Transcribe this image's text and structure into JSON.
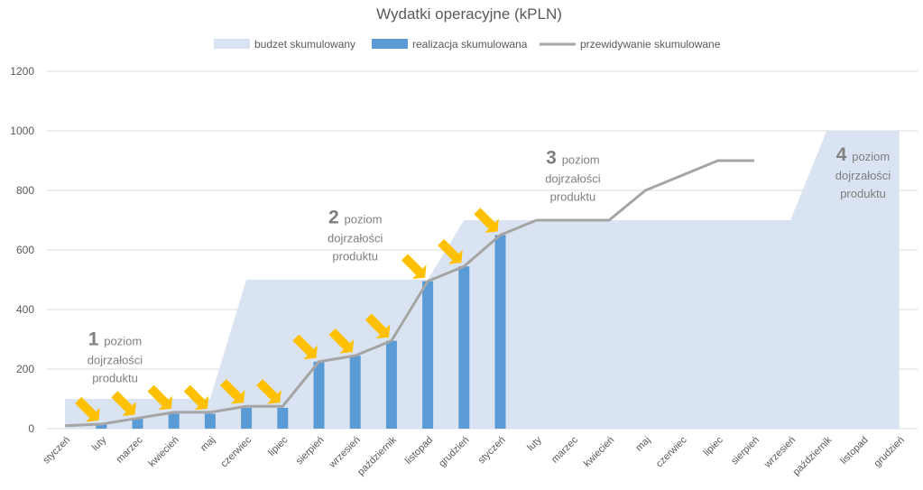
{
  "chart_data": {
    "type": "bar",
    "title": "Wydatki operacyjne (kPLN)",
    "xlabel": "",
    "ylabel": "",
    "ylim": [
      0,
      1200
    ],
    "yticks": [
      0,
      200,
      400,
      600,
      800,
      1000,
      1200
    ],
    "grid": true,
    "legend_position": "top",
    "categories": [
      "styczeń",
      "luty",
      "marzec",
      "kwiecień",
      "maj",
      "czerwiec",
      "lipiec",
      "sierpień",
      "wrzesień",
      "październik",
      "listopad",
      "grudzień",
      "styczeń",
      "luty",
      "marzec",
      "kwiecień",
      "maj",
      "czerwiec",
      "lipiec",
      "sierpień",
      "wrzesień",
      "październik",
      "listopad",
      "grudzień"
    ],
    "series": [
      {
        "name": "budzet skumulowany",
        "type": "area",
        "color": "#dae3f1",
        "values": [
          100,
          100,
          100,
          100,
          100,
          500,
          500,
          500,
          500,
          500,
          500,
          700,
          700,
          700,
          700,
          700,
          700,
          700,
          700,
          700,
          700,
          1000,
          1000,
          1000
        ]
      },
      {
        "name": "realizacja skumulowana",
        "type": "bar",
        "color": "#5b9bd5",
        "values": [
          0,
          15,
          35,
          50,
          50,
          70,
          70,
          225,
          245,
          295,
          495,
          545,
          650,
          null,
          null,
          null,
          null,
          null,
          null,
          null,
          null,
          null,
          null,
          null
        ]
      },
      {
        "name": "przewidywanie skumulowane",
        "type": "line",
        "color": "#a5a5a5",
        "values": [
          10,
          15,
          35,
          55,
          55,
          75,
          75,
          225,
          245,
          295,
          495,
          545,
          650,
          700,
          700,
          700,
          800,
          850,
          900,
          900,
          null,
          null,
          null,
          null
        ]
      }
    ],
    "annotations": [
      {
        "num": "1",
        "text1": "poziom",
        "text2": "dojrzałości",
        "text3": "produktu",
        "at_index": 2,
        "at_value": 280
      },
      {
        "num": "2",
        "text1": "poziom",
        "text2": "dojrzałości",
        "text3": "produktu",
        "at_index": 8,
        "at_value": 690
      },
      {
        "num": "3",
        "text1": "poziom",
        "text2": "dojrzałości",
        "text3": "produktu",
        "at_index": 14,
        "at_value": 890
      },
      {
        "num": "4",
        "text1": "poziom",
        "text2": "dojrzałości",
        "text3": "produktu",
        "at_index": 22,
        "at_value": 900
      }
    ],
    "arrow_indices": [
      1,
      2,
      3,
      4,
      5,
      6,
      7,
      8,
      9,
      10,
      11,
      12
    ],
    "arrow_color": "#ffc000"
  }
}
